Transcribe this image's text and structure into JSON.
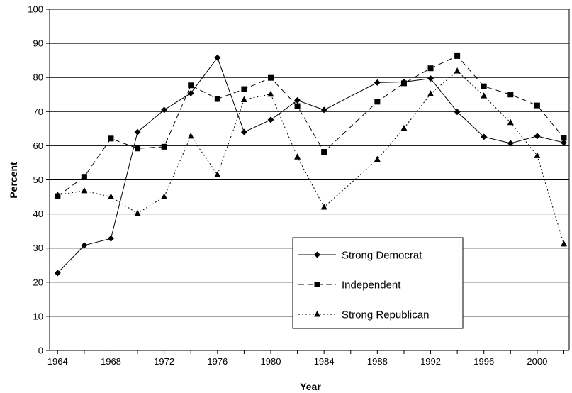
{
  "chart_data": {
    "type": "line",
    "title": "",
    "xlabel": "Year",
    "ylabel": "Percent",
    "xlim": [
      1964,
      2002
    ],
    "ylim": [
      0,
      100
    ],
    "x_ticks": [
      "1964",
      "1968",
      "1972",
      "1976",
      "1980",
      "1984",
      "1988",
      "1992",
      "1996",
      "2000"
    ],
    "y_ticks": [
      "0",
      "10",
      "20",
      "30",
      "40",
      "50",
      "60",
      "70",
      "80",
      "90",
      "100"
    ],
    "grid": "horizontal",
    "legend_position": "lower-center",
    "series": [
      {
        "name": "Strong Democrat",
        "marker": "diamond",
        "line_style": "solid",
        "x": [
          1964,
          1966,
          1968,
          1970,
          1972,
          1974,
          1976,
          1978,
          1980,
          1982,
          1984,
          1988,
          1990,
          1992,
          1994,
          1996,
          1998,
          2000,
          2002
        ],
        "values": [
          22.7,
          30.8,
          32.8,
          64.0,
          70.5,
          75.4,
          85.8,
          64.0,
          67.6,
          73.3,
          70.5,
          78.5,
          78.7,
          79.7,
          69.9,
          62.6,
          60.7,
          62.8,
          60.9
        ]
      },
      {
        "name": "Independent",
        "marker": "square",
        "line_style": "dashed",
        "x": [
          1964,
          1966,
          1968,
          1970,
          1972,
          1974,
          1976,
          1978,
          1980,
          1982,
          1984,
          1988,
          1990,
          1992,
          1994,
          1996,
          1998,
          2000,
          2002
        ],
        "values": [
          45.2,
          50.9,
          62.1,
          59.2,
          59.7,
          77.7,
          73.7,
          76.6,
          79.9,
          71.6,
          58.2,
          72.9,
          78.3,
          82.7,
          86.3,
          77.4,
          75.0,
          71.8,
          62.3
        ]
      },
      {
        "name": "Strong Republican",
        "marker": "triangle",
        "line_style": "dotted",
        "x": [
          1964,
          1966,
          1968,
          1970,
          1972,
          1974,
          1976,
          1978,
          1980,
          1982,
          1984,
          1988,
          1990,
          1992,
          1994,
          1996,
          1998,
          2000,
          2002
        ],
        "values": [
          45.6,
          46.8,
          45.0,
          40.2,
          45.0,
          62.8,
          51.5,
          73.5,
          75.1,
          56.7,
          42.0,
          56.0,
          65.1,
          75.2,
          81.9,
          74.6,
          66.8,
          57.1,
          31.2
        ]
      }
    ]
  }
}
